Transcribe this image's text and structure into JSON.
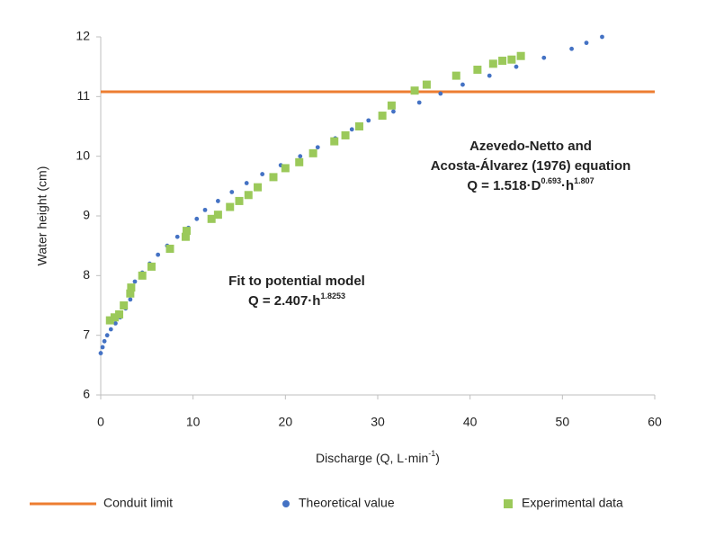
{
  "chart_data": {
    "type": "scatter",
    "x_label": [
      "Discharge (Q, L·min",
      "-1",
      ")"
    ],
    "y_label": "Water height (cm)",
    "xlim": [
      0,
      60
    ],
    "xticks": [
      0,
      10,
      20,
      30,
      40,
      50,
      60
    ],
    "ylim": [
      6,
      12
    ],
    "yticks": [
      6,
      7,
      8,
      9,
      10,
      11,
      12
    ],
    "legend": "bottom",
    "annotations": [
      {
        "lines": [
          "Azevedo-Netto and",
          "Acosta-Álvarez (1976) equation"
        ],
        "formula": [
          "Q = 1.518·D",
          "0.693",
          "·h",
          "1.807"
        ]
      },
      {
        "lines": [
          "Fit to potential model"
        ],
        "formula": [
          "Q = 2.407·h",
          "1.8253"
        ]
      }
    ],
    "series": [
      {
        "name": "Conduit limit",
        "color": "#ed7d31",
        "kind": "hline",
        "y": 11.08
      },
      {
        "name": "Theoretical value",
        "color": "#4472c4",
        "kind": "circle",
        "x": [
          0,
          0.2,
          0.4,
          0.7,
          1.1,
          1.6,
          2.1,
          2.7,
          3.2,
          3.7,
          4.5,
          5.3,
          6.2,
          7.2,
          8.3,
          9.5,
          10.4,
          11.3,
          12.7,
          14.2,
          15.8,
          17.5,
          19.5,
          21.6,
          23.5,
          25.4,
          27.2,
          29.0,
          31.7,
          34.5,
          36.8,
          39.2,
          42.1,
          45.0,
          48.0,
          51.0,
          52.6,
          54.3
        ],
        "y": [
          6.7,
          6.8,
          6.9,
          7.0,
          7.1,
          7.2,
          7.3,
          7.45,
          7.6,
          7.9,
          8.05,
          8.2,
          8.35,
          8.5,
          8.65,
          8.8,
          8.95,
          9.1,
          9.25,
          9.4,
          9.55,
          9.7,
          9.85,
          10.0,
          10.15,
          10.3,
          10.45,
          10.6,
          10.75,
          10.9,
          11.05,
          11.2,
          11.35,
          11.5,
          11.65,
          11.8,
          11.9,
          12.0
        ]
      },
      {
        "name": "Experimental data",
        "color": "#9bc95a",
        "kind": "square",
        "x": [
          1,
          1.5,
          2,
          2.5,
          3.2,
          3.3,
          4.5,
          5.5,
          7.5,
          9.2,
          9.3,
          12,
          12.7,
          14,
          15,
          16,
          17,
          18.7,
          20,
          21.5,
          23,
          25.3,
          26.5,
          28,
          30.5,
          31.5,
          34,
          35.3,
          38.5,
          40.8,
          42.5,
          43.5,
          44.5,
          45.5
        ],
        "y": [
          7.25,
          7.3,
          7.35,
          7.5,
          7.7,
          7.8,
          8.0,
          8.15,
          8.45,
          8.65,
          8.75,
          8.95,
          9.02,
          9.15,
          9.25,
          9.35,
          9.48,
          9.65,
          9.8,
          9.9,
          10.05,
          10.25,
          10.35,
          10.5,
          10.68,
          10.85,
          11.1,
          11.2,
          11.35,
          11.45,
          11.55,
          11.6,
          11.62,
          11.68
        ]
      }
    ]
  }
}
